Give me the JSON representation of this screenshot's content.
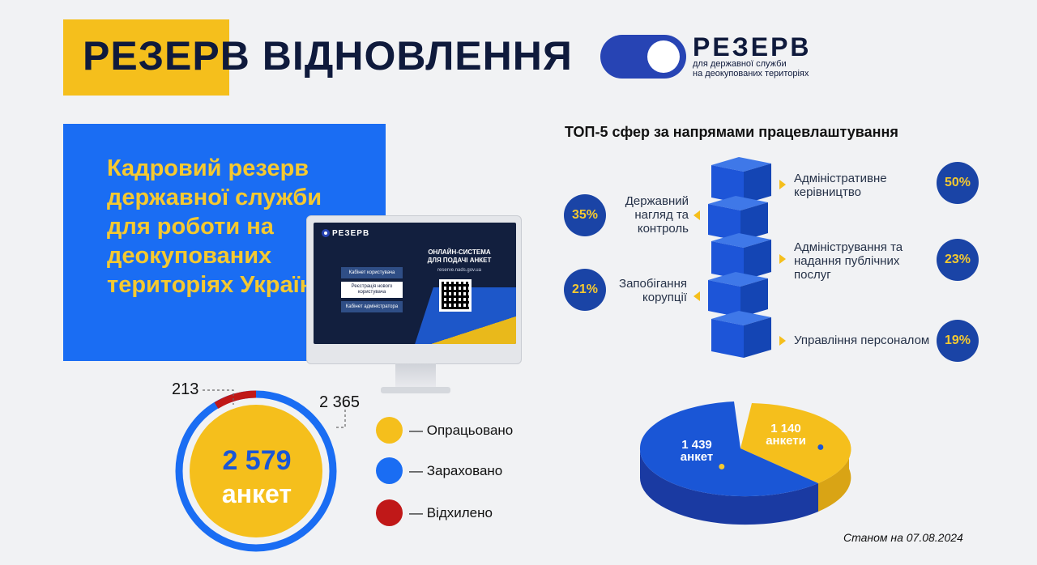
{
  "header": {
    "title": "РЕЗЕРВ ВІДНОВЛЕННЯ",
    "logo_word": "РЕЗЕРВ",
    "logo_subtitle_line1": "для державної служби",
    "logo_subtitle_line2": "на деокупованих територіях"
  },
  "panel": {
    "text": "Кадровий резерв державної служби для роботи на деокупованих територіях України"
  },
  "monitor": {
    "logo": "РЕЗЕРВ",
    "buttons": [
      "Кабінет користувача",
      "Реєстрація нового користувача",
      "Кабінет адміністратора"
    ],
    "heading_line1": "ОНЛАЙН-СИСТЕМА",
    "heading_line2": "ДЛЯ ПОДАЧІ АНКЕТ",
    "url": "reserve.nads.gov.ua"
  },
  "applications": {
    "total_number": "2 579",
    "total_unit": "анкет",
    "rejected_label": "213",
    "enrolled_label": "2 365",
    "legend": [
      {
        "label": "— Опрацьовано",
        "color": "#f5bf1c"
      },
      {
        "label": "— Зараховано",
        "color": "#1a6df3"
      },
      {
        "label": "— Відхилено",
        "color": "#c01818"
      }
    ]
  },
  "top5": {
    "title": "ТОП-5 сфер за напрямами працевлаштування",
    "items": [
      {
        "label_line1": "Адміністративне",
        "label_line2": "керівництво",
        "label_line3": "",
        "percent": "50%"
      },
      {
        "label_line1": "Державний",
        "label_line2": "нагляд та",
        "label_line3": "контроль",
        "percent": "35%"
      },
      {
        "label_line1": "Адміністрування та",
        "label_line2": "надання публічних",
        "label_line3": "послуг",
        "percent": "23%"
      },
      {
        "label_line1": "Запобігання",
        "label_line2": "корупції",
        "label_line3": "",
        "percent": "21%"
      },
      {
        "label_line1": "Управління персоналом",
        "label_line2": "",
        "label_line3": "",
        "percent": "19%"
      }
    ]
  },
  "gender_pie": {
    "men_value": "1 439",
    "men_unit": "анкет",
    "women_value": "1 140",
    "women_unit": "анкети",
    "colors": {
      "men": "#1a56d6",
      "women": "#f5bf1c"
    }
  },
  "footer": {
    "date": "Станом на 07.08.2024"
  }
}
